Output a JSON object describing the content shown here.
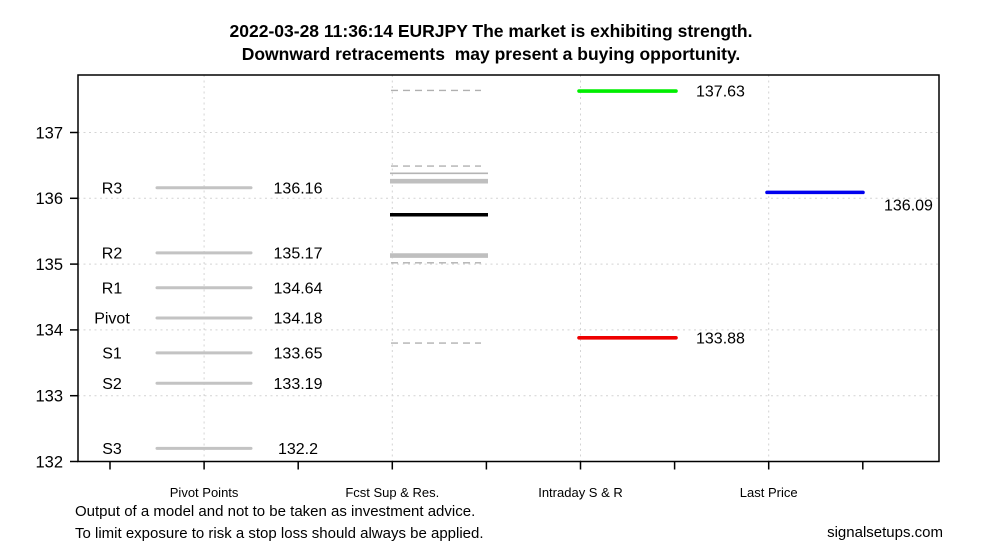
{
  "chart_data": {
    "type": "line",
    "title": "2022-03-28 11:36:14 EURJPY The market is exhibiting strength.",
    "subtitle": "Downward retracements  may present a buying opportunity.",
    "xlabel": "",
    "ylabel": "",
    "ylim": [
      132,
      137.9
    ],
    "yticks": [
      132,
      133,
      134,
      135,
      136,
      137
    ],
    "grid": true,
    "legend_position": "none",
    "sections": [
      "Pivot Points",
      "Fcst Sup & Res.",
      "Intraday S & R",
      "Last Price"
    ],
    "series": [
      {
        "name": "Pivot Points",
        "color": "#c3c3c3",
        "levels": [
          {
            "label": "R3",
            "value": 136.16,
            "display": "136.16"
          },
          {
            "label": "R2",
            "value": 135.17,
            "display": "135.17"
          },
          {
            "label": "R1",
            "value": 134.64,
            "display": "134.64"
          },
          {
            "label": "Pivot",
            "value": 134.18,
            "display": "134.18"
          },
          {
            "label": "S1",
            "value": 133.65,
            "display": "133.65"
          },
          {
            "label": "S2",
            "value": 133.19,
            "display": "133.19"
          },
          {
            "label": "S3",
            "value": 132.2,
            "display": "132.2"
          }
        ]
      },
      {
        "name": "Fcst Sup & Res.",
        "levels": [
          {
            "style": "dashed",
            "value": 137.64
          },
          {
            "style": "dashed",
            "value": 136.49
          },
          {
            "style": "thin",
            "value": 136.38
          },
          {
            "style": "thick",
            "value": 136.26
          },
          {
            "style": "black",
            "value": 135.75
          },
          {
            "style": "thick",
            "value": 135.13
          },
          {
            "style": "dashed",
            "value": 135.02
          },
          {
            "style": "dashed",
            "value": 133.8
          }
        ]
      },
      {
        "name": "Intraday S & R",
        "levels": [
          {
            "value": 137.63,
            "display": "137.63",
            "color": "#00ee00"
          },
          {
            "value": 133.88,
            "display": "133.88",
            "color": "#ee0000"
          }
        ]
      },
      {
        "name": "Last Price",
        "levels": [
          {
            "value": 136.09,
            "display": "136.09",
            "color": "#0000ee"
          }
        ]
      }
    ]
  },
  "footer": {
    "disclaimer_line1": "Output of a model and not to be taken as investment advice.",
    "disclaimer_line2": "To limit exposure to risk a stop loss should always be applied.",
    "website": "signalsetups.com"
  }
}
